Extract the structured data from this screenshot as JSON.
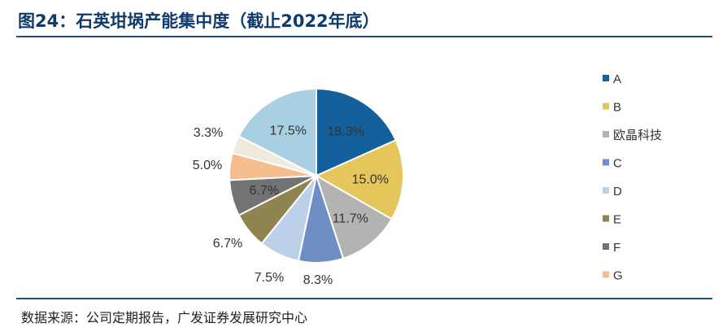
{
  "figure": {
    "title": "图24：石英坩埚产能集中度（截止2022年底）",
    "source": "数据来源：公司定期报告，广发证券发展研究中心"
  },
  "chart_data": {
    "type": "pie",
    "title": "图24：石英坩埚产能集中度（截止2022年底）",
    "legend_position": "right",
    "slices": [
      {
        "name": "A",
        "value": 18.3,
        "label": "18.3%",
        "color": "#13609c"
      },
      {
        "name": "B",
        "value": 15.0,
        "label": "15.0%",
        "color": "#e5c65a"
      },
      {
        "name": "欧晶科技",
        "value": 11.7,
        "label": "11.7%",
        "color": "#b3b3b3"
      },
      {
        "name": "C",
        "value": 8.3,
        "label": "8.3%",
        "color": "#6f8fc4"
      },
      {
        "name": "D",
        "value": 7.5,
        "label": "7.5%",
        "color": "#bcd0e9"
      },
      {
        "name": "E",
        "value": 6.7,
        "label": "6.7%",
        "color": "#8e8450"
      },
      {
        "name": "F",
        "value": 6.7,
        "label": "6.7%",
        "color": "#737373"
      },
      {
        "name": "G",
        "value": 5.0,
        "label": "5.0%",
        "color": "#f6bd8f"
      },
      {
        "name": "",
        "value": 3.3,
        "label": "3.3%",
        "color": "#eeebdd"
      },
      {
        "name": "",
        "value": 17.5,
        "label": "17.5%",
        "color": "#a8d0e2"
      }
    ]
  }
}
